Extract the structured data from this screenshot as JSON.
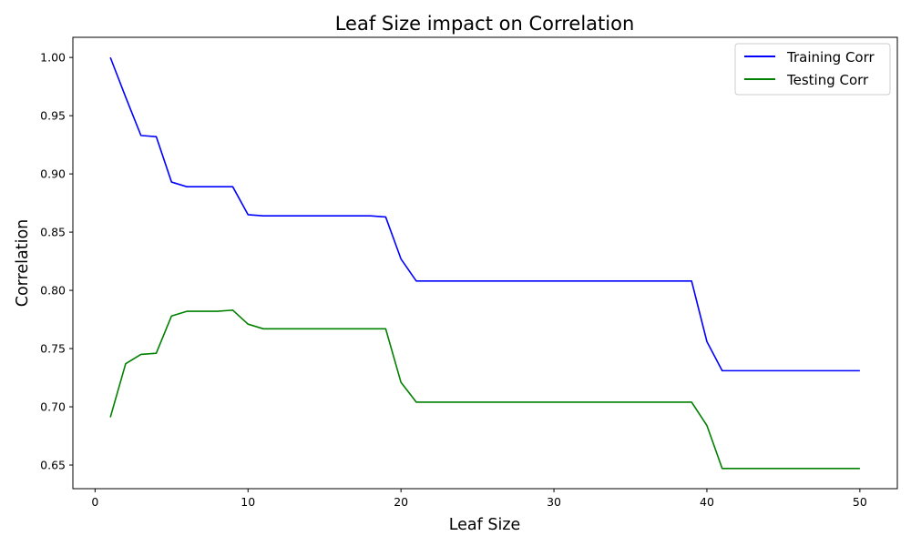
{
  "chart_data": {
    "type": "line",
    "title": "Leaf Size impact on Correlation",
    "xlabel": "Leaf Size",
    "ylabel": "Correlation",
    "xlim": [
      -1.45,
      52.45
    ],
    "ylim": [
      0.6297,
      1.0173
    ],
    "xticks": [
      0,
      10,
      20,
      30,
      40,
      50
    ],
    "yticks": [
      0.65,
      0.7,
      0.75,
      0.8,
      0.85,
      0.9,
      0.95,
      1.0
    ],
    "xtick_labels": [
      "0",
      "10",
      "20",
      "30",
      "40",
      "50"
    ],
    "ytick_labels": [
      "0.65",
      "0.70",
      "0.75",
      "0.80",
      "0.85",
      "0.90",
      "0.95",
      "1.00"
    ],
    "grid": false,
    "legend_position": "top-right",
    "x": [
      1,
      2,
      3,
      4,
      5,
      6,
      7,
      8,
      9,
      10,
      11,
      12,
      13,
      14,
      15,
      16,
      17,
      18,
      19,
      20,
      21,
      22,
      23,
      24,
      25,
      26,
      27,
      28,
      29,
      30,
      31,
      32,
      33,
      34,
      35,
      36,
      37,
      38,
      39,
      40,
      41,
      42,
      43,
      44,
      45,
      46,
      47,
      48,
      49,
      50
    ],
    "series": [
      {
        "name": "Training Corr",
        "color": "#0000ff",
        "values": [
          1.0,
          0.966,
          0.933,
          0.932,
          0.893,
          0.889,
          0.889,
          0.889,
          0.889,
          0.865,
          0.864,
          0.864,
          0.864,
          0.864,
          0.864,
          0.864,
          0.864,
          0.864,
          0.863,
          0.827,
          0.808,
          0.808,
          0.808,
          0.808,
          0.808,
          0.808,
          0.808,
          0.808,
          0.808,
          0.808,
          0.808,
          0.808,
          0.808,
          0.808,
          0.808,
          0.808,
          0.808,
          0.808,
          0.808,
          0.756,
          0.731,
          0.731,
          0.731,
          0.731,
          0.731,
          0.731,
          0.731,
          0.731,
          0.731,
          0.731
        ]
      },
      {
        "name": "Testing Corr",
        "color": "#008000",
        "values": [
          0.691,
          0.737,
          0.745,
          0.746,
          0.778,
          0.782,
          0.782,
          0.782,
          0.783,
          0.771,
          0.767,
          0.767,
          0.767,
          0.767,
          0.767,
          0.767,
          0.767,
          0.767,
          0.767,
          0.721,
          0.704,
          0.704,
          0.704,
          0.704,
          0.704,
          0.704,
          0.704,
          0.704,
          0.704,
          0.704,
          0.704,
          0.704,
          0.704,
          0.704,
          0.704,
          0.704,
          0.704,
          0.704,
          0.704,
          0.684,
          0.647,
          0.647,
          0.647,
          0.647,
          0.647,
          0.647,
          0.647,
          0.647,
          0.647,
          0.647
        ]
      }
    ]
  }
}
